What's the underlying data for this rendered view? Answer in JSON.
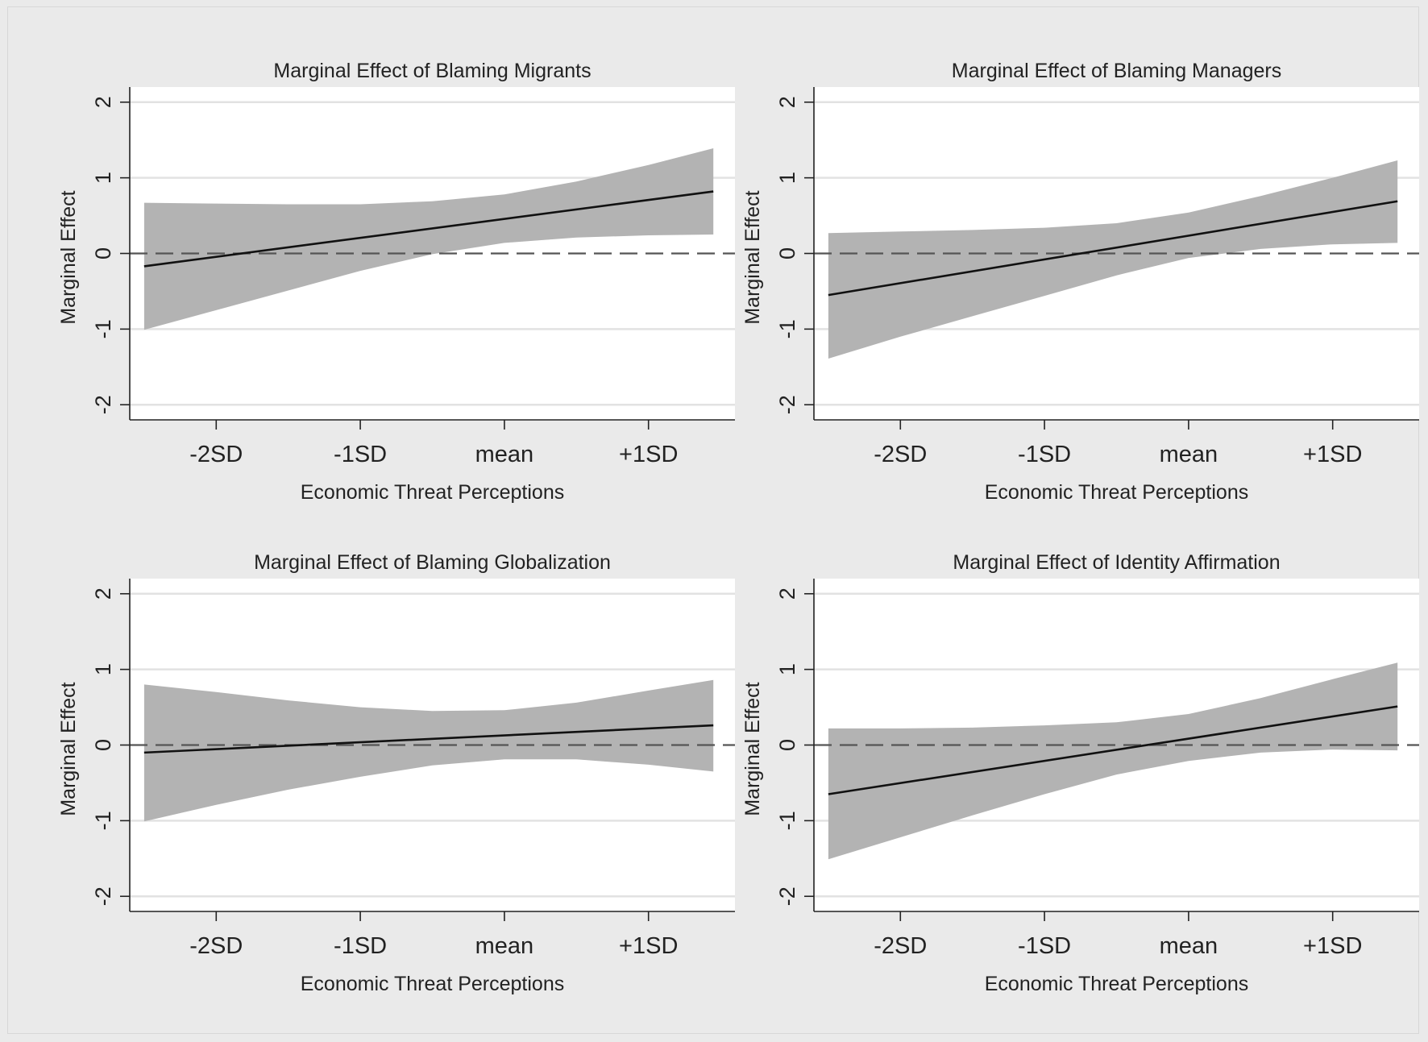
{
  "colors": {
    "background": "#eaeaea",
    "plot_area": "#ffffff",
    "band": "#b3b3b3",
    "line": "#111111",
    "zero_line": "#555555",
    "gridline": "#e2e2e2"
  },
  "chart_data": [
    {
      "type": "line",
      "title": "Marginal Effect of Blaming Migrants",
      "xlabel": "Economic Threat Perceptions",
      "ylabel": "Marginal Effect",
      "x_ticks": [
        "-2SD",
        "-1SD",
        "mean",
        "+1SD"
      ],
      "x_tick_values": [
        -2,
        -1,
        0,
        1
      ],
      "xlim": [
        -2.6,
        1.6
      ],
      "y_ticks": [
        "2",
        "1",
        "0",
        "-1",
        "-2"
      ],
      "y_tick_values": [
        2,
        1,
        0,
        -1,
        -2
      ],
      "ylim": [
        -2.2,
        2.2
      ],
      "grid": true,
      "reference_line": 0,
      "estimate": {
        "x": [
          -2.5,
          1.45
        ],
        "y": [
          -0.17,
          0.82
        ]
      },
      "ci_band": {
        "x": [
          -2.5,
          -2,
          -1.5,
          -1,
          -0.5,
          0,
          0.5,
          1,
          1.45
        ],
        "upper": [
          0.67,
          0.66,
          0.65,
          0.65,
          0.69,
          0.78,
          0.95,
          1.17,
          1.39
        ],
        "lower": [
          -1.01,
          -0.75,
          -0.49,
          -0.23,
          -0.01,
          0.14,
          0.21,
          0.24,
          0.25
        ]
      }
    },
    {
      "type": "line",
      "title": "Marginal Effect of Blaming Managers",
      "xlabel": "Economic Threat Perceptions",
      "ylabel": "Marginal Effect",
      "x_ticks": [
        "-2SD",
        "-1SD",
        "mean",
        "+1SD"
      ],
      "x_tick_values": [
        -2,
        -1,
        0,
        1
      ],
      "xlim": [
        -2.6,
        1.6
      ],
      "y_ticks": [
        "2",
        "1",
        "0",
        "-1",
        "-2"
      ],
      "y_tick_values": [
        2,
        1,
        0,
        -1,
        -2
      ],
      "ylim": [
        -2.2,
        2.2
      ],
      "grid": true,
      "reference_line": 0,
      "estimate": {
        "x": [
          -2.5,
          1.45
        ],
        "y": [
          -0.55,
          0.69
        ]
      },
      "ci_band": {
        "x": [
          -2.5,
          -2,
          -1.5,
          -1,
          -0.5,
          0,
          0.5,
          1,
          1.45
        ],
        "upper": [
          0.27,
          0.29,
          0.31,
          0.34,
          0.4,
          0.54,
          0.76,
          1.0,
          1.23
        ],
        "lower": [
          -1.39,
          -1.1,
          -0.83,
          -0.56,
          -0.29,
          -0.06,
          0.06,
          0.12,
          0.14
        ]
      }
    },
    {
      "type": "line",
      "title": "Marginal Effect of Blaming Globalization",
      "xlabel": "Economic Threat Perceptions",
      "ylabel": "Marginal Effect",
      "x_ticks": [
        "-2SD",
        "-1SD",
        "mean",
        "+1SD"
      ],
      "x_tick_values": [
        -2,
        -1,
        0,
        1
      ],
      "xlim": [
        -2.6,
        1.6
      ],
      "y_ticks": [
        "2",
        "1",
        "0",
        "-1",
        "-2"
      ],
      "y_tick_values": [
        2,
        1,
        0,
        -1,
        -2
      ],
      "ylim": [
        -2.2,
        2.2
      ],
      "grid": true,
      "reference_line": 0,
      "estimate": {
        "x": [
          -2.5,
          1.45
        ],
        "y": [
          -0.1,
          0.26
        ]
      },
      "ci_band": {
        "x": [
          -2.5,
          -2,
          -1.5,
          -1,
          -0.5,
          0,
          0.5,
          1,
          1.45
        ],
        "upper": [
          0.8,
          0.7,
          0.59,
          0.5,
          0.45,
          0.46,
          0.56,
          0.72,
          0.86
        ],
        "lower": [
          -1.01,
          -0.79,
          -0.59,
          -0.42,
          -0.27,
          -0.19,
          -0.19,
          -0.26,
          -0.35
        ]
      }
    },
    {
      "type": "line",
      "title": "Marginal Effect of Identity Affirmation",
      "xlabel": "Economic Threat Perceptions",
      "ylabel": "Marginal Effect",
      "x_ticks": [
        "-2SD",
        "-1SD",
        "mean",
        "+1SD"
      ],
      "x_tick_values": [
        -2,
        -1,
        0,
        1
      ],
      "xlim": [
        -2.6,
        1.6
      ],
      "y_ticks": [
        "2",
        "1",
        "0",
        "-1",
        "-2"
      ],
      "y_tick_values": [
        2,
        1,
        0,
        -1,
        -2
      ],
      "ylim": [
        -2.2,
        2.2
      ],
      "grid": true,
      "reference_line": 0,
      "estimate": {
        "x": [
          -2.5,
          1.45
        ],
        "y": [
          -0.65,
          0.51
        ]
      },
      "ci_band": {
        "x": [
          -2.5,
          -2,
          -1.5,
          -1,
          -0.5,
          0,
          0.5,
          1,
          1.45
        ],
        "upper": [
          0.22,
          0.22,
          0.23,
          0.26,
          0.3,
          0.41,
          0.62,
          0.87,
          1.09
        ],
        "lower": [
          -1.51,
          -1.22,
          -0.93,
          -0.65,
          -0.39,
          -0.21,
          -0.1,
          -0.06,
          -0.07
        ]
      }
    }
  ]
}
